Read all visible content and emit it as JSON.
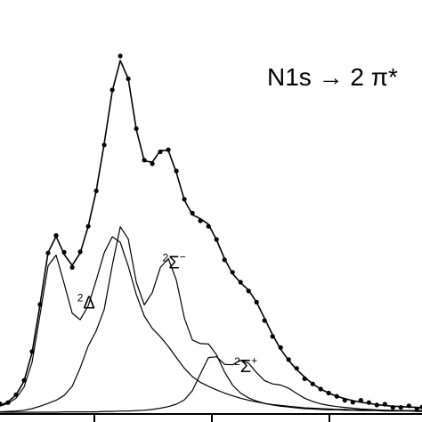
{
  "chart_data": {
    "type": "line",
    "title": "N1s → 2 π*",
    "xlabel": "",
    "ylabel": "",
    "xlim": [
      0,
      100
    ],
    "ylim": [
      0,
      1.0
    ],
    "grid": false,
    "annotations": [
      {
        "sup": "2",
        "main": "Δ",
        "sup2": "",
        "x": 18.3,
        "y": 0.26
      },
      {
        "sup": "2",
        "main": "Σ",
        "sup2": "−",
        "x": 38.5,
        "y": 0.36
      },
      {
        "sup": "2",
        "main": "Σ",
        "sup2": "+",
        "x": 55.5,
        "y": 0.1
      }
    ],
    "series": [
      {
        "name": "",
        "kind": "line",
        "x": [
          0.0,
          1.9,
          3.8,
          5.7,
          7.6,
          9.5,
          11.4,
          13.3,
          15.2,
          17.1,
          19.0,
          20.9,
          22.8,
          24.7,
          26.6,
          28.5,
          30.4,
          32.3,
          34.2,
          36.1,
          38.0,
          39.9,
          41.8,
          43.7,
          45.6,
          47.5,
          49.4,
          51.3,
          53.2,
          55.1,
          57.0,
          58.9,
          60.8,
          62.7,
          64.6,
          66.5,
          68.4,
          70.3,
          72.2,
          74.1,
          76.0,
          77.9,
          79.8,
          81.7,
          83.6,
          85.5,
          87.4,
          89.3,
          91.2,
          93.1,
          95.0,
          96.9,
          98.8,
          100.0
        ],
        "y": [
          0.016,
          0.026,
          0.043,
          0.078,
          0.149,
          0.27,
          0.4,
          0.441,
          0.396,
          0.368,
          0.399,
          0.466,
          0.555,
          0.674,
          0.805,
          0.882,
          0.836,
          0.709,
          0.63,
          0.627,
          0.656,
          0.656,
          0.601,
          0.532,
          0.495,
          0.485,
          0.471,
          0.432,
          0.385,
          0.347,
          0.325,
          0.306,
          0.276,
          0.235,
          0.194,
          0.158,
          0.13,
          0.107,
          0.088,
          0.071,
          0.058,
          0.048,
          0.04,
          0.034,
          0.029,
          0.025,
          0.022,
          0.019,
          0.017,
          0.015,
          0.014,
          0.013,
          0.012,
          0.011
        ]
      },
      {
        "name": "",
        "kind": "points",
        "x": [
          0.0,
          1.9,
          3.8,
          5.7,
          7.6,
          9.5,
          11.4,
          13.3,
          15.2,
          17.1,
          19.0,
          20.9,
          22.8,
          24.7,
          26.6,
          28.5,
          30.4,
          32.3,
          34.2,
          36.1,
          38.0,
          39.9,
          41.8,
          43.7,
          45.6,
          47.5,
          49.4,
          51.3,
          53.2,
          55.1,
          57.0,
          58.9,
          60.8,
          62.7,
          64.6,
          66.5,
          68.4,
          70.3,
          72.2,
          74.1,
          76.0,
          77.9,
          79.8,
          81.7,
          83.6,
          85.5,
          87.4,
          89.3,
          91.2,
          93.1,
          95.0,
          96.9,
          98.8,
          100.0
        ],
        "y": [
          0.021,
          0.024,
          0.044,
          0.08,
          0.152,
          0.27,
          0.399,
          0.443,
          0.401,
          0.363,
          0.402,
          0.466,
          0.555,
          0.67,
          0.808,
          0.893,
          0.836,
          0.711,
          0.632,
          0.623,
          0.653,
          0.658,
          0.605,
          0.534,
          0.499,
          0.48,
          0.466,
          0.433,
          0.382,
          0.351,
          0.326,
          0.304,
          0.276,
          0.23,
          0.19,
          0.162,
          0.132,
          0.11,
          0.084,
          0.071,
          0.058,
          0.048,
          0.04,
          0.03,
          0.025,
          0.03,
          0.024,
          0.018,
          0.02,
          0.012,
          0.012,
          0.016,
          0.008,
          0.013
        ]
      },
      {
        "name": "",
        "kind": "line",
        "x": [
          0.0,
          1.9,
          3.8,
          5.7,
          7.6,
          9.5,
          11.4,
          13.3,
          15.2,
          17.1,
          19.0,
          20.9,
          22.8,
          24.7,
          26.6,
          28.5,
          30.4,
          32.3,
          34.2,
          36.1,
          38.0,
          39.9,
          41.8,
          43.7,
          45.6,
          47.5,
          49.4,
          51.3,
          53.2,
          55.1,
          57.0,
          58.9,
          60.8,
          62.7,
          64.6,
          66.5,
          68.4,
          70.3,
          72.2,
          74.1,
          76.0,
          77.9,
          79.8,
          81.7,
          83.6,
          85.5,
          87.4,
          89.3,
          91.2,
          93.1,
          95.0,
          96.9,
          98.8,
          100.0
        ],
        "y": [
          0.015,
          0.022,
          0.035,
          0.063,
          0.125,
          0.245,
          0.367,
          0.394,
          0.323,
          0.248,
          0.232,
          0.267,
          0.331,
          0.4,
          0.44,
          0.426,
          0.366,
          0.295,
          0.241,
          0.21,
          0.189,
          0.165,
          0.137,
          0.11,
          0.089,
          0.075,
          0.065,
          0.056,
          0.048,
          0.041,
          0.035,
          0.03,
          0.026,
          0.022,
          0.019,
          0.017,
          0.015,
          0.013,
          0.011,
          0.01,
          0.009,
          0.008,
          0.007,
          0.007,
          0.006,
          0.006,
          0.005,
          0.005,
          0.005,
          0.004,
          0.004,
          0.004,
          0.004,
          0.004
        ]
      },
      {
        "name": "",
        "kind": "line",
        "x": [
          0.0,
          1.9,
          3.8,
          5.7,
          7.6,
          9.5,
          11.4,
          13.3,
          15.2,
          17.1,
          19.0,
          20.9,
          22.8,
          24.7,
          26.6,
          28.5,
          30.4,
          32.3,
          34.2,
          36.1,
          38.0,
          39.9,
          41.8,
          43.7,
          45.6,
          47.5,
          49.4,
          51.3,
          53.2,
          55.1,
          57.0,
          58.9,
          60.8,
          62.7,
          64.6,
          66.5,
          68.4,
          70.3,
          72.2,
          74.1,
          76.0,
          77.9,
          79.8,
          81.7,
          83.6,
          85.5,
          87.4,
          89.3,
          91.2,
          93.1,
          95.0,
          96.9,
          98.8,
          100.0
        ],
        "y": [
          0.001,
          0.002,
          0.003,
          0.005,
          0.009,
          0.015,
          0.022,
          0.03,
          0.042,
          0.065,
          0.111,
          0.166,
          0.204,
          0.258,
          0.368,
          0.465,
          0.434,
          0.326,
          0.269,
          0.3,
          0.363,
          0.385,
          0.331,
          0.236,
          0.181,
          0.172,
          0.171,
          0.144,
          0.101,
          0.068,
          0.048,
          0.036,
          0.028,
          0.022,
          0.018,
          0.015,
          0.013,
          0.011,
          0.009,
          0.008,
          0.007,
          0.006,
          0.006,
          0.005,
          0.005,
          0.004,
          0.004,
          0.004,
          0.003,
          0.003,
          0.003,
          0.003,
          0.002,
          0.002
        ]
      },
      {
        "name": "",
        "kind": "line",
        "x": [
          0.0,
          1.9,
          3.8,
          5.7,
          7.6,
          9.5,
          11.4,
          13.3,
          15.2,
          17.1,
          19.0,
          20.9,
          22.8,
          24.7,
          26.6,
          28.5,
          30.4,
          32.3,
          34.2,
          36.1,
          38.0,
          39.9,
          41.8,
          43.7,
          45.6,
          47.5,
          49.4,
          51.3,
          53.2,
          55.1,
          57.0,
          58.9,
          60.8,
          62.7,
          64.6,
          66.5,
          68.4,
          70.3,
          72.2,
          74.1,
          76.0,
          77.9,
          79.8,
          81.7,
          83.6,
          85.5,
          87.4,
          89.3,
          91.2,
          93.1,
          95.0,
          96.9,
          98.8,
          100.0
        ],
        "y": [
          0.0,
          0.0,
          0.0,
          0.0,
          0.0,
          0.0,
          0.0,
          0.0,
          0.001,
          0.001,
          0.001,
          0.001,
          0.001,
          0.002,
          0.002,
          0.003,
          0.003,
          0.004,
          0.005,
          0.007,
          0.01,
          0.014,
          0.02,
          0.031,
          0.054,
          0.096,
          0.137,
          0.139,
          0.12,
          0.119,
          0.13,
          0.123,
          0.099,
          0.079,
          0.071,
          0.068,
          0.06,
          0.047,
          0.035,
          0.027,
          0.021,
          0.017,
          0.014,
          0.012,
          0.01,
          0.008,
          0.007,
          0.006,
          0.005,
          0.005,
          0.004,
          0.004,
          0.003,
          0.003
        ]
      }
    ]
  }
}
